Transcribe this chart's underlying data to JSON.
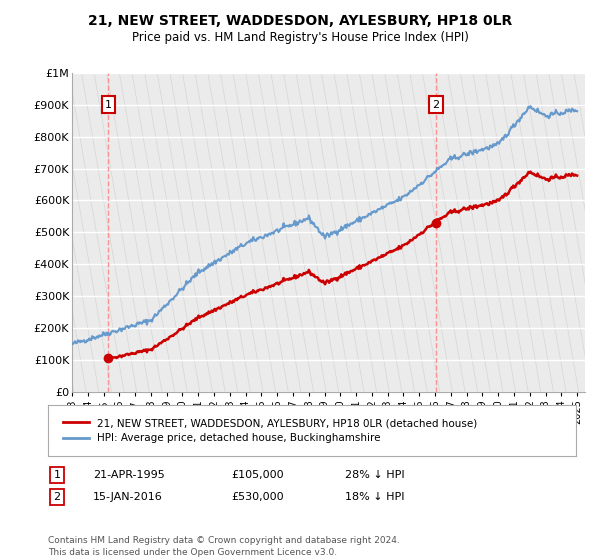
{
  "title1": "21, NEW STREET, WADDESDON, AYLESBURY, HP18 0LR",
  "title2": "Price paid vs. HM Land Registry's House Price Index (HPI)",
  "ylim": [
    0,
    1000000
  ],
  "yticks": [
    0,
    100000,
    200000,
    300000,
    400000,
    500000,
    600000,
    700000,
    800000,
    900000,
    1000000
  ],
  "ytick_labels": [
    "£0",
    "£100K",
    "£200K",
    "£300K",
    "£400K",
    "£500K",
    "£600K",
    "£700K",
    "£800K",
    "£900K",
    "£1M"
  ],
  "sale1_date": 1995.31,
  "sale1_price": 105000,
  "sale2_date": 2016.04,
  "sale2_price": 530000,
  "hpi_color": "#6699cc",
  "price_color": "#cc0000",
  "legend_label1": "21, NEW STREET, WADDESDON, AYLESBURY, HP18 0LR (detached house)",
  "legend_label2": "HPI: Average price, detached house, Buckinghamshire",
  "footer": "Contains HM Land Registry data © Crown copyright and database right 2024.\nThis data is licensed under the Open Government Licence v3.0.",
  "bg_color": "#ffffff",
  "plot_bg_color": "#ebebeb"
}
